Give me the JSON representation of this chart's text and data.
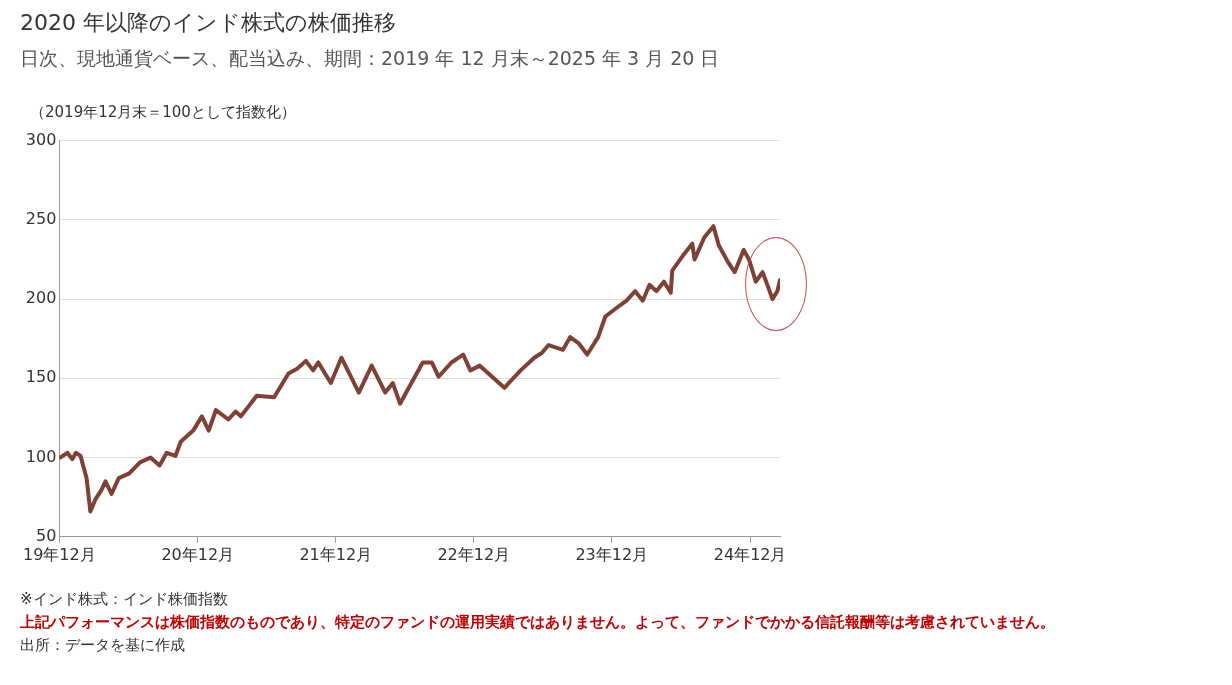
{
  "chart_data": {
    "type": "line",
    "title": "2020 年以降のインド株式の株価推移",
    "subtitle": "日次、現地通貨ベース、配当込み、期間：2019 年 12 月末～2025 年 3 月 20 日",
    "ylabel": "（2019年12月末＝100として指数化）",
    "annotations": [
      "※インド株式：インド株価指数",
      "上記パフォーマンスは株価指数のものであり、特定のファンドの運用実績ではありません。よって、ファンドでかかる信託報酬等は考慮されていません。",
      "出所：データを基に作成"
    ],
    "xlim": [
      "2019-12-31",
      "2025-03-20"
    ],
    "xticks": [
      {
        "value": "2019-12-31",
        "label": "19年12月"
      },
      {
        "value": "2020-12-31",
        "label": "20年12月"
      },
      {
        "value": "2021-12-31",
        "label": "21年12月"
      },
      {
        "value": "2022-12-31",
        "label": "22年12月"
      },
      {
        "value": "2023-12-31",
        "label": "23年12月"
      },
      {
        "value": "2024-12-31",
        "label": "24年12月"
      }
    ],
    "ylim": [
      50,
      300
    ],
    "yticks": [
      50,
      100,
      150,
      200,
      250,
      300
    ],
    "grid": "y",
    "legend": false,
    "marker": "none",
    "line_style": "solid",
    "x": [
      "2020-01-02",
      "2020-01-21",
      "2020-02-03",
      "2020-02-13",
      "2020-02-25",
      "2020-03-12",
      "2020-03-22",
      "2020-04-05",
      "2020-04-19",
      "2020-05-01",
      "2020-05-17",
      "2020-06-05",
      "2020-07-03",
      "2020-07-31",
      "2020-08-28",
      "2020-09-21",
      "2020-10-10",
      "2020-11-02",
      "2020-11-16",
      "2020-12-19",
      "2021-01-11",
      "2021-01-29",
      "2021-02-17",
      "2021-03-22",
      "2021-04-10",
      "2021-04-24",
      "2021-06-05",
      "2021-07-21",
      "2021-08-28",
      "2021-09-20",
      "2021-10-13",
      "2021-11-01",
      "2021-11-15",
      "2021-12-18",
      "2022-01-15",
      "2022-03-02",
      "2022-04-05",
      "2022-05-11",
      "2022-05-31",
      "2022-06-19",
      "2022-08-18",
      "2022-09-11",
      "2022-09-29",
      "2022-11-02",
      "2022-12-03",
      "2022-12-22",
      "2023-01-16",
      "2023-02-13",
      "2023-03-22",
      "2023-05-04",
      "2023-06-09",
      "2023-06-29",
      "2023-07-17",
      "2023-08-24",
      "2023-09-12",
      "2023-10-05",
      "2023-10-27",
      "2023-11-25",
      "2023-12-14",
      "2024-01-16",
      "2024-02-08",
      "2024-03-02",
      "2024-03-22",
      "2024-04-09",
      "2024-04-27",
      "2024-05-17",
      "2024-06-04",
      "2024-06-08",
      "2024-07-08",
      "2024-07-31",
      "2024-08-06",
      "2024-09-01",
      "2024-09-25",
      "2024-10-09",
      "2024-11-01",
      "2024-11-20",
      "2024-12-14",
      "2024-12-28",
      "2025-01-15",
      "2025-02-02",
      "2025-02-16",
      "2025-02-28",
      "2025-03-13",
      "2025-03-20"
    ],
    "series": [
      {
        "color": "#7f4036",
        "values": [
          100,
          103,
          99,
          103,
          101,
          87,
          66,
          74,
          79,
          85,
          77,
          87,
          90,
          97,
          100,
          95,
          103,
          101,
          110,
          117,
          126,
          117,
          130,
          124,
          129,
          126,
          139,
          138,
          153,
          156,
          161,
          155,
          160,
          147,
          163,
          141,
          158,
          141,
          147,
          134,
          160,
          160,
          151,
          160,
          165,
          155,
          158,
          152,
          144,
          155,
          163,
          166,
          171,
          168,
          176,
          172,
          165,
          176,
          189,
          195,
          199,
          205,
          199,
          209,
          205,
          211,
          204,
          218,
          228,
          235,
          225,
          239,
          246,
          234,
          224,
          217,
          231,
          225,
          211,
          217,
          208,
          200,
          205,
          212
        ]
      }
    ]
  }
}
